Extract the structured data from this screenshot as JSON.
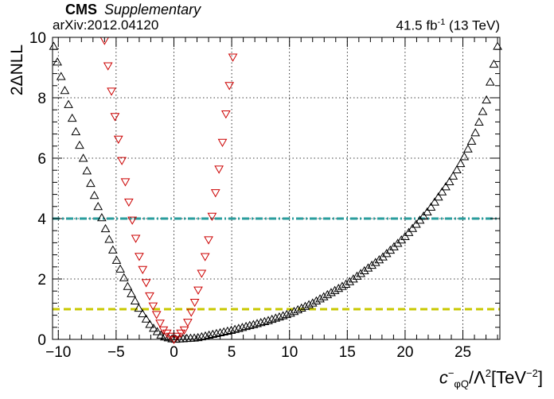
{
  "header": {
    "experiment": "CMS",
    "status": "Supplementary",
    "reference": "arXiv:2012.04120",
    "luminosity_value": "41.5 fb",
    "luminosity_exponent": "-1",
    "energy": "(13 TeV)"
  },
  "chart_data": {
    "type": "scatter",
    "xlabel_parts": {
      "symbol": "c",
      "superscript": "−",
      "subscript": "φQ",
      "middle": "/Λ",
      "power": "2",
      "unit_open": "[TeV",
      "unit_power": "−2",
      "unit_close": "]"
    },
    "ylabel": "2ΔNLL",
    "xlim": [
      -10.5,
      28.2
    ],
    "ylim": [
      0,
      10
    ],
    "xticks": [
      -10,
      -5,
      0,
      5,
      10,
      15,
      20,
      25
    ],
    "xtick_labels": [
      "−10",
      "−5",
      "0",
      "5",
      "10",
      "15",
      "20",
      "25"
    ],
    "yticks": [
      0,
      2,
      4,
      6,
      8,
      10
    ],
    "ytick_labels": [
      "0",
      "2",
      "4",
      "6",
      "8",
      "10"
    ],
    "grid": true,
    "reference_lines": [
      {
        "y": 4,
        "color": "#2a9d9d",
        "style": "dash-dot"
      },
      {
        "y": 1,
        "color": "#c8c800",
        "style": "dashed"
      }
    ],
    "series": [
      {
        "marker": "triangle-up-open",
        "color": "#000000",
        "x_min": -10.4,
        "x_max": 28.0,
        "x_step": 0.32,
        "minimum_x": 0.0,
        "curve_points": [
          {
            "x": -10.4,
            "y": 9.7
          },
          {
            "x": -10.0,
            "y": 9.05
          },
          {
            "x": -9.0,
            "y": 7.6
          },
          {
            "x": -8.0,
            "y": 6.2
          },
          {
            "x": -7.0,
            "y": 4.9
          },
          {
            "x": -6.0,
            "y": 3.75
          },
          {
            "x": -5.0,
            "y": 2.65
          },
          {
            "x": -4.0,
            "y": 1.75
          },
          {
            "x": -3.0,
            "y": 1.0
          },
          {
            "x": -2.0,
            "y": 0.45
          },
          {
            "x": -1.0,
            "y": 0.1
          },
          {
            "x": 0.0,
            "y": 0.0
          },
          {
            "x": 2.0,
            "y": 0.05
          },
          {
            "x": 5.0,
            "y": 0.3
          },
          {
            "x": 8.0,
            "y": 0.6
          },
          {
            "x": 10.0,
            "y": 0.85
          },
          {
            "x": 12.0,
            "y": 1.2
          },
          {
            "x": 15.0,
            "y": 1.85
          },
          {
            "x": 18.0,
            "y": 2.7
          },
          {
            "x": 20.0,
            "y": 3.4
          },
          {
            "x": 22.0,
            "y": 4.25
          },
          {
            "x": 24.0,
            "y": 5.3
          },
          {
            "x": 25.0,
            "y": 5.95
          },
          {
            "x": 26.0,
            "y": 6.75
          },
          {
            "x": 27.0,
            "y": 7.85
          },
          {
            "x": 28.0,
            "y": 9.7
          }
        ]
      },
      {
        "marker": "triangle-down-open",
        "color": "#cc0000",
        "x_min": -6.0,
        "x_max": 5.1,
        "x_step": 0.3,
        "minimum_x": 0.0,
        "curve_points": [
          {
            "x": -6.0,
            "y": 9.9
          },
          {
            "x": -5.0,
            "y": 7.1
          },
          {
            "x": -4.0,
            "y": 4.75
          },
          {
            "x": -3.0,
            "y": 2.75
          },
          {
            "x": -2.0,
            "y": 1.3
          },
          {
            "x": -1.0,
            "y": 0.35
          },
          {
            "x": 0.0,
            "y": 0.0
          },
          {
            "x": 1.0,
            "y": 0.35
          },
          {
            "x": 2.0,
            "y": 1.45
          },
          {
            "x": 3.0,
            "y": 3.3
          },
          {
            "x": 4.0,
            "y": 5.9
          },
          {
            "x": 5.1,
            "y": 9.35
          }
        ]
      }
    ]
  }
}
